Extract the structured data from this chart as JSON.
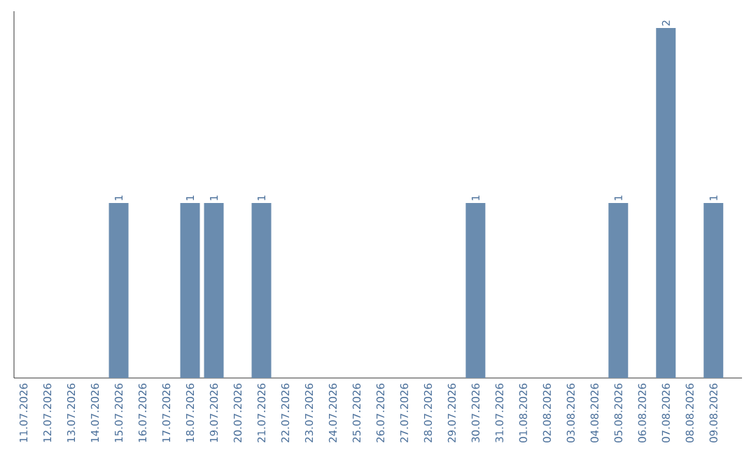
{
  "chart_data": {
    "type": "bar",
    "categories": [
      "11.07.2026",
      "12.07.2026",
      "13.07.2026",
      "14.07.2026",
      "15.07.2026",
      "16.07.2026",
      "17.07.2026",
      "18.07.2026",
      "19.07.2026",
      "20.07.2026",
      "21.07.2026",
      "22.07.2026",
      "23.07.2026",
      "24.07.2026",
      "25.07.2026",
      "26.07.2026",
      "27.07.2026",
      "28.07.2026",
      "29.07.2026",
      "30.07.2026",
      "31.07.2026",
      "01.08.2026",
      "02.08.2026",
      "03.08.2026",
      "04.08.2026",
      "05.08.2026",
      "06.08.2026",
      "07.08.2026",
      "08.08.2026",
      "09.08.2026"
    ],
    "values": [
      0,
      0,
      0,
      0,
      1,
      0,
      0,
      1,
      1,
      0,
      1,
      0,
      0,
      0,
      0,
      0,
      0,
      0,
      0,
      1,
      0,
      0,
      0,
      0,
      0,
      1,
      0,
      2,
      0,
      1
    ],
    "value_labels": [
      null,
      null,
      null,
      null,
      "1",
      null,
      null,
      "1",
      "1",
      null,
      "1",
      null,
      null,
      null,
      null,
      null,
      null,
      null,
      null,
      "1",
      null,
      null,
      null,
      null,
      null,
      "1",
      null,
      "2",
      null,
      "1"
    ],
    "color": "#6a8caf",
    "tick_labels": "x"
  }
}
